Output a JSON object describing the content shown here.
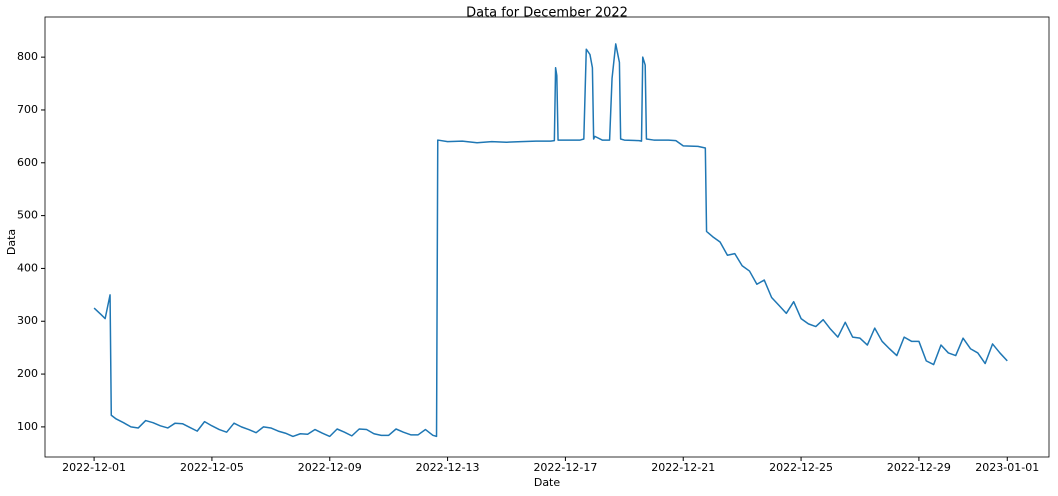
{
  "chart_data": {
    "type": "line",
    "title": "Data for December 2022",
    "x_label": "Date",
    "y_label": "Data",
    "x": [
      "2022-12-01 00:00",
      "2022-12-01 06:00",
      "2022-12-01 09:00",
      "2022-12-01 13:00",
      "2022-12-01 14:00",
      "2022-12-01 18:00",
      "2022-12-02 00:00",
      "2022-12-02 06:00",
      "2022-12-02 12:00",
      "2022-12-02 18:00",
      "2022-12-03 00:00",
      "2022-12-03 06:00",
      "2022-12-03 12:00",
      "2022-12-03 18:00",
      "2022-12-04 00:00",
      "2022-12-04 06:00",
      "2022-12-04 12:00",
      "2022-12-04 18:00",
      "2022-12-05 00:00",
      "2022-12-05 06:00",
      "2022-12-05 12:00",
      "2022-12-05 18:00",
      "2022-12-06 00:00",
      "2022-12-06 06:00",
      "2022-12-06 12:00",
      "2022-12-06 18:00",
      "2022-12-07 00:00",
      "2022-12-07 06:00",
      "2022-12-07 12:00",
      "2022-12-07 18:00",
      "2022-12-08 00:00",
      "2022-12-08 06:00",
      "2022-12-08 12:00",
      "2022-12-08 18:00",
      "2022-12-09 00:00",
      "2022-12-09 06:00",
      "2022-12-09 12:00",
      "2022-12-09 18:00",
      "2022-12-10 00:00",
      "2022-12-10 06:00",
      "2022-12-10 12:00",
      "2022-12-10 18:00",
      "2022-12-11 00:00",
      "2022-12-11 06:00",
      "2022-12-11 12:00",
      "2022-12-11 18:00",
      "2022-12-12 00:00",
      "2022-12-12 06:00",
      "2022-12-12 12:00",
      "2022-12-12 15:00",
      "2022-12-12 16:00",
      "2022-12-13 00:00",
      "2022-12-13 12:00",
      "2022-12-14 00:00",
      "2022-12-14 12:00",
      "2022-12-15 00:00",
      "2022-12-15 12:00",
      "2022-12-16 00:00",
      "2022-12-16 12:00",
      "2022-12-16 15:00",
      "2022-12-16 16:00",
      "2022-12-16 17:00",
      "2022-12-16 18:00",
      "2022-12-17 00:00",
      "2022-12-17 12:00",
      "2022-12-17 15:00",
      "2022-12-17 17:00",
      "2022-12-17 20:00",
      "2022-12-17 22:00",
      "2022-12-17 23:00",
      "2022-12-18 00:00",
      "2022-12-18 06:00",
      "2022-12-18 12:00",
      "2022-12-18 14:00",
      "2022-12-18 17:00",
      "2022-12-18 20:00",
      "2022-12-18 21:00",
      "2022-12-19 00:00",
      "2022-12-19 12:00",
      "2022-12-19 14:00",
      "2022-12-19 15:00",
      "2022-12-19 17:00",
      "2022-12-19 18:00",
      "2022-12-20 00:00",
      "2022-12-20 12:00",
      "2022-12-20 18:00",
      "2022-12-21 00:00",
      "2022-12-21 12:00",
      "2022-12-21 18:00",
      "2022-12-21 19:00",
      "2022-12-22 00:00",
      "2022-12-22 06:00",
      "2022-12-22 12:00",
      "2022-12-22 18:00",
      "2022-12-23 00:00",
      "2022-12-23 06:00",
      "2022-12-23 12:00",
      "2022-12-23 18:00",
      "2022-12-24 00:00",
      "2022-12-24 06:00",
      "2022-12-24 12:00",
      "2022-12-24 18:00",
      "2022-12-25 00:00",
      "2022-12-25 06:00",
      "2022-12-25 12:00",
      "2022-12-25 18:00",
      "2022-12-26 00:00",
      "2022-12-26 06:00",
      "2022-12-26 12:00",
      "2022-12-26 18:00",
      "2022-12-27 00:00",
      "2022-12-27 06:00",
      "2022-12-27 12:00",
      "2022-12-27 18:00",
      "2022-12-28 00:00",
      "2022-12-28 06:00",
      "2022-12-28 12:00",
      "2022-12-28 18:00",
      "2022-12-29 00:00",
      "2022-12-29 06:00",
      "2022-12-29 12:00",
      "2022-12-29 18:00",
      "2022-12-30 00:00",
      "2022-12-30 06:00",
      "2022-12-30 12:00",
      "2022-12-30 18:00",
      "2022-12-31 00:00",
      "2022-12-31 06:00",
      "2022-12-31 12:00",
      "2022-12-31 18:00",
      "2023-01-01 00:00"
    ],
    "series": [
      {
        "color": "#1f77b4",
        "values": [
          325,
          312,
          305,
          350,
          122,
          115,
          108,
          100,
          98,
          112,
          108,
          102,
          98,
          107,
          106,
          99,
          92,
          110,
          102,
          95,
          90,
          107,
          100,
          95,
          89,
          100,
          98,
          92,
          88,
          82,
          87,
          86,
          95,
          88,
          82,
          96,
          90,
          83,
          96,
          95,
          87,
          84,
          84,
          96,
          90,
          85,
          85,
          95,
          84,
          82,
          643,
          640,
          641,
          638,
          640,
          639,
          640,
          641,
          641,
          642,
          780,
          765,
          643,
          643,
          643,
          645,
          815,
          805,
          780,
          645,
          650,
          643,
          643,
          760,
          825,
          790,
          645,
          643,
          642,
          641,
          800,
          785,
          645,
          643,
          643,
          642,
          632,
          631,
          628,
          470,
          460,
          450,
          425,
          428,
          405,
          395,
          370,
          378,
          345,
          330,
          315,
          337,
          305,
          295,
          290,
          303,
          285,
          270,
          298,
          270,
          268,
          255,
          287,
          262,
          248,
          235,
          270,
          262,
          262,
          225,
          218,
          255,
          240,
          235,
          268,
          248,
          240,
          220,
          257,
          240,
          225
        ]
      }
    ],
    "xlim": [
      "2022-11-29 08:00",
      "2023-01-02 10:00"
    ],
    "xticks": [
      "2022-12-01",
      "2022-12-05",
      "2022-12-09",
      "2022-12-13",
      "2022-12-17",
      "2022-12-21",
      "2022-12-25",
      "2022-12-29",
      "2023-01-01"
    ],
    "ylim": [
      43,
      876
    ],
    "yticks": [
      100,
      200,
      300,
      400,
      500,
      600,
      700,
      800
    ],
    "grid": false
  }
}
